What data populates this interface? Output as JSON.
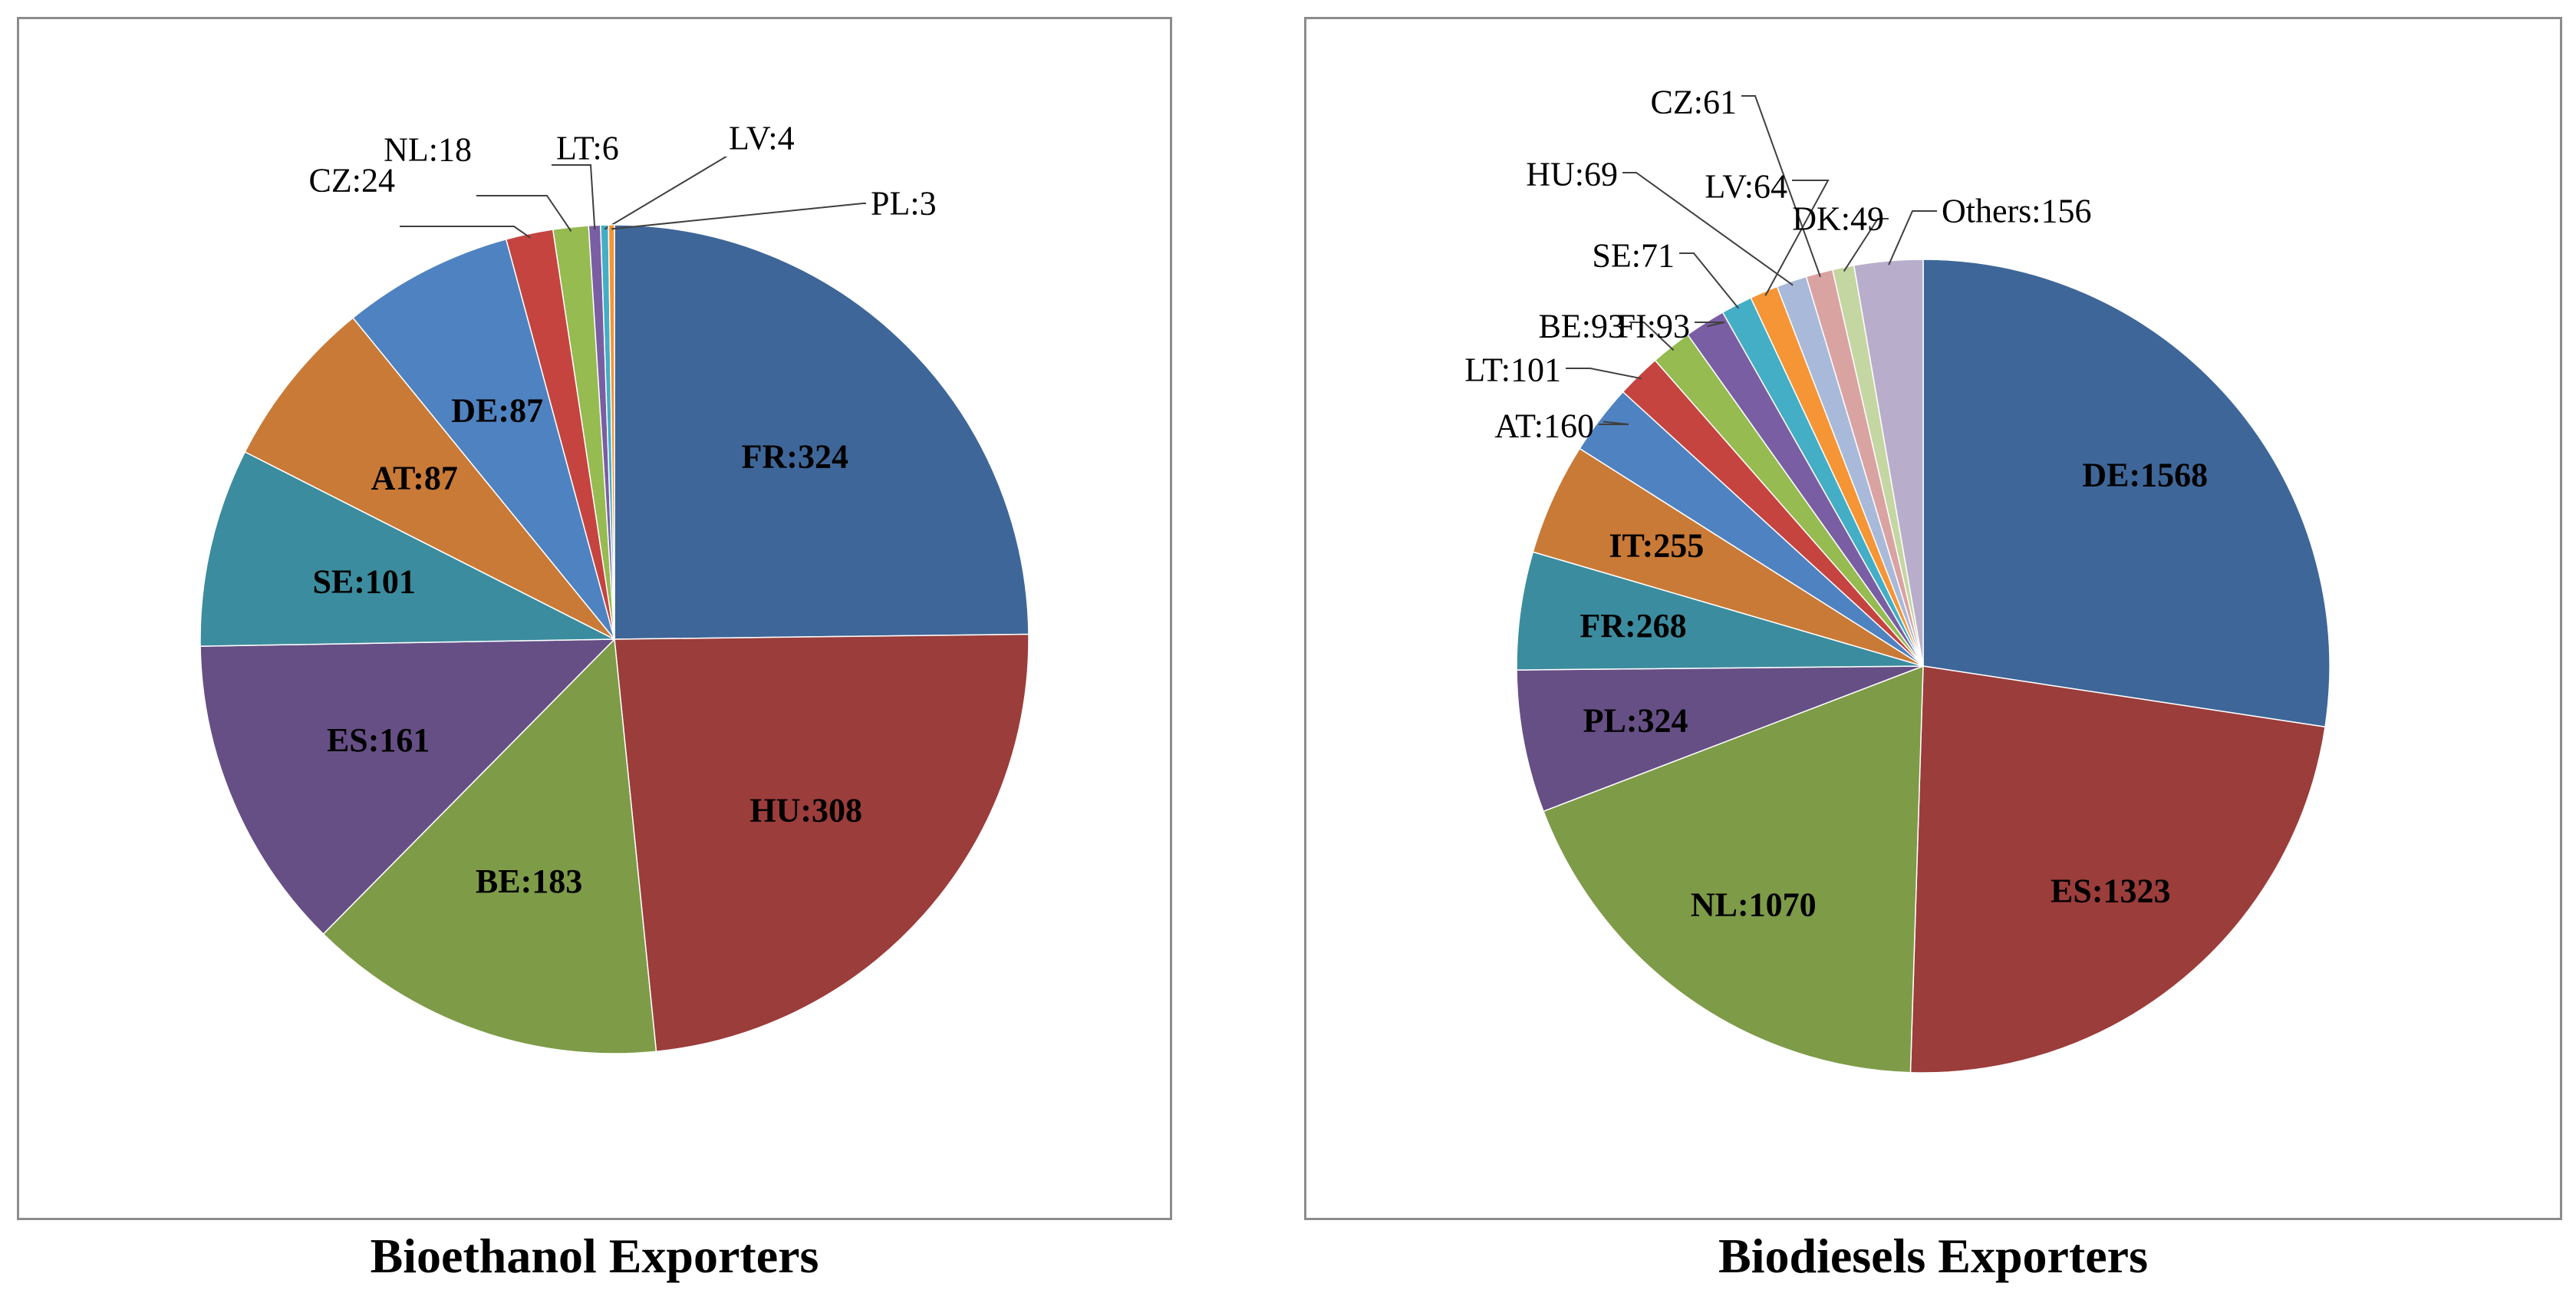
{
  "chart_data": [
    {
      "type": "pie",
      "title": "Bioethanol Exporters",
      "start_angle_deg": 0,
      "direction": "clockwise",
      "slices": [
        {
          "label": "FR:324",
          "name": "FR",
          "value": 324,
          "color": "#3e6698",
          "label_mode": "inside"
        },
        {
          "label": "HU:308",
          "name": "HU",
          "value": 308,
          "color": "#9b3d3b",
          "label_mode": "inside"
        },
        {
          "label": "BE:183",
          "name": "BE",
          "value": 183,
          "color": "#7e9b48",
          "label_mode": "inside"
        },
        {
          "label": "ES:161",
          "name": "ES",
          "value": 161,
          "color": "#664f85",
          "label_mode": "inside"
        },
        {
          "label": "SE:101",
          "name": "SE",
          "value": 101,
          "color": "#3b8c9e",
          "label_mode": "inside"
        },
        {
          "label": "AT:87",
          "name": "AT",
          "value": 87,
          "color": "#c97a37",
          "label_mode": "inside"
        },
        {
          "label": "DE:87",
          "name": "DE",
          "value": 87,
          "color": "#4f82c0",
          "label_mode": "inside"
        },
        {
          "label": "CZ:24",
          "name": "CZ",
          "value": 24,
          "color": "#c5443f",
          "label_mode": "outside"
        },
        {
          "label": "NL:18",
          "name": "NL",
          "value": 18,
          "color": "#95bb51",
          "label_mode": "outside"
        },
        {
          "label": "LT:6",
          "name": "LT",
          "value": 6,
          "color": "#7a5ea3",
          "label_mode": "outside"
        },
        {
          "label": "LV:4",
          "name": "LV",
          "value": 4,
          "color": "#43aec6",
          "label_mode": "outside"
        },
        {
          "label": "PL:3",
          "name": "PL",
          "value": 3,
          "color": "#f59536",
          "label_mode": "outside"
        }
      ]
    },
    {
      "type": "pie",
      "title": "Biodiesels Exporters",
      "start_angle_deg": 0,
      "direction": "clockwise",
      "slices": [
        {
          "label": "DE:1568",
          "name": "DE",
          "value": 1568,
          "color": "#3e6698",
          "label_mode": "inside"
        },
        {
          "label": "ES:1323",
          "name": "ES",
          "value": 1323,
          "color": "#9b3d3b",
          "label_mode": "inside"
        },
        {
          "label": "NL:1070",
          "name": "NL",
          "value": 1070,
          "color": "#7e9b48",
          "label_mode": "inside"
        },
        {
          "label": "PL:324",
          "name": "PL",
          "value": 324,
          "color": "#664f85",
          "label_mode": "inside"
        },
        {
          "label": "FR:268",
          "name": "FR",
          "value": 268,
          "color": "#3b8c9e",
          "label_mode": "inside"
        },
        {
          "label": "IT:255",
          "name": "IT",
          "value": 255,
          "color": "#c97a37",
          "label_mode": "inside"
        },
        {
          "label": "AT:160",
          "name": "AT",
          "value": 160,
          "color": "#4f82c0",
          "label_mode": "outside"
        },
        {
          "label": "LT:101",
          "name": "LT",
          "value": 101,
          "color": "#c5443f",
          "label_mode": "outside"
        },
        {
          "label": "BE:93",
          "name": "BE",
          "value": 93,
          "color": "#95bb51",
          "label_mode": "outside"
        },
        {
          "label": "FI:93",
          "name": "FI",
          "value": 93,
          "color": "#7a5ea3",
          "label_mode": "outside"
        },
        {
          "label": "SE:71",
          "name": "SE",
          "value": 71,
          "color": "#43aec6",
          "label_mode": "outside"
        },
        {
          "label": "LV:64",
          "name": "LV",
          "value": 64,
          "color": "#f59536",
          "label_mode": "outside"
        },
        {
          "label": "HU:69",
          "name": "HU",
          "value": 69,
          "color": "#a9b9d9",
          "label_mode": "outside"
        },
        {
          "label": "CZ:61",
          "name": "CZ",
          "value": 61,
          "color": "#d9a3a2",
          "label_mode": "outside"
        },
        {
          "label": "DK:49",
          "name": "DK",
          "value": 49,
          "color": "#c4d6a2",
          "label_mode": "outside"
        },
        {
          "label": "Others:156",
          "name": "Others",
          "value": 156,
          "color": "#b8aecb",
          "label_mode": "outside"
        }
      ]
    }
  ]
}
